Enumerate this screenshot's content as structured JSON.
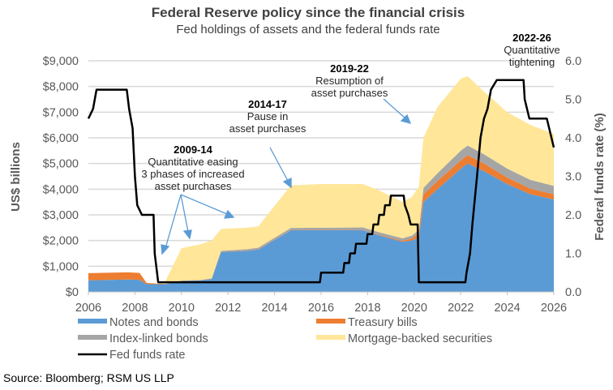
{
  "chart_data": {
    "type": "area",
    "title": "Federal Reserve policy since the financial crisis",
    "subtitle": "Fed holdings of assets and the federal funds rate",
    "ylabel": "US$ billions",
    "y2label": "Federal funds rate (%)",
    "xlim": [
      2006,
      2026
    ],
    "ylim": [
      0,
      9000
    ],
    "y2lim": [
      0,
      6
    ],
    "grid": true,
    "legend_position": "bottom",
    "x_ticks": [
      "2006",
      "2008",
      "2010",
      "2012",
      "2014",
      "2016",
      "2018",
      "2020",
      "2022",
      "2024",
      "2026"
    ],
    "y_ticks": [
      "$0",
      "$1,000",
      "$2,000",
      "$3,000",
      "$4,000",
      "$5,000",
      "$6,000",
      "$7,000",
      "$8,000",
      "$9,000"
    ],
    "y2_ticks": [
      "0.0",
      "1.0",
      "2.0",
      "3.0",
      "4.0",
      "5.0",
      "6.0"
    ],
    "x": [
      2006,
      2007.7,
      2008.2,
      2008.5,
      2009,
      2009.3,
      2010,
      2010.8,
      2011.3,
      2011.7,
      2012.8,
      2013.3,
      2014.7,
      2016,
      2017.8,
      2018.5,
      2019.5,
      2019.9,
      2020.2,
      2020.4,
      2021,
      2022,
      2022.3,
      2023,
      2024,
      2025,
      2026
    ],
    "series": [
      {
        "name": "Notes and bonds",
        "color": "#5B9BD5",
        "values": [
          450,
          480,
          470,
          300,
          300,
          300,
          430,
          450,
          500,
          1550,
          1600,
          1650,
          2400,
          2400,
          2400,
          2200,
          1950,
          2000,
          2100,
          3500,
          4000,
          4800,
          5000,
          4700,
          4200,
          3800,
          3600
        ]
      },
      {
        "name": "Treasury bills",
        "color": "#ED7D31",
        "values": [
          280,
          280,
          270,
          50,
          20,
          10,
          10,
          10,
          10,
          10,
          10,
          10,
          10,
          10,
          10,
          20,
          40,
          80,
          200,
          300,
          320,
          320,
          320,
          300,
          250,
          220,
          200
        ]
      },
      {
        "name": "Index-linked bonds",
        "color": "#A5A5A5",
        "values": [
          0,
          0,
          0,
          0,
          0,
          0,
          0,
          0,
          20,
          40,
          50,
          60,
          80,
          90,
          100,
          100,
          100,
          110,
          120,
          250,
          300,
          380,
          380,
          360,
          350,
          340,
          330
        ]
      },
      {
        "name": "Mortgage-backed securities",
        "color": "#FFE699",
        "values": [
          0,
          0,
          0,
          0,
          10,
          90,
          1260,
          1390,
          1470,
          850,
          840,
          830,
          1660,
          1700,
          1690,
          1630,
          1410,
          1510,
          1680,
          1950,
          2580,
          2800,
          2700,
          2440,
          2200,
          2140,
          2020
        ]
      }
    ],
    "line": {
      "name": "Fed funds rate",
      "color": "#000000",
      "axis": "right",
      "points": [
        [
          2006,
          4.5
        ],
        [
          2006.2,
          4.75
        ],
        [
          2006.35,
          5.25
        ],
        [
          2007.65,
          5.25
        ],
        [
          2007.75,
          4.75
        ],
        [
          2007.9,
          4.25
        ],
        [
          2008.0,
          3.0
        ],
        [
          2008.1,
          2.25
        ],
        [
          2008.3,
          2.0
        ],
        [
          2008.8,
          2.0
        ],
        [
          2008.85,
          1.0
        ],
        [
          2009.0,
          0.25
        ],
        [
          2015.95,
          0.25
        ],
        [
          2016.0,
          0.5
        ],
        [
          2016.95,
          0.5
        ],
        [
          2017.0,
          0.75
        ],
        [
          2017.2,
          0.75
        ],
        [
          2017.25,
          1.0
        ],
        [
          2017.45,
          1.0
        ],
        [
          2017.5,
          1.25
        ],
        [
          2017.95,
          1.25
        ],
        [
          2018.0,
          1.5
        ],
        [
          2018.2,
          1.5
        ],
        [
          2018.25,
          1.75
        ],
        [
          2018.45,
          1.75
        ],
        [
          2018.5,
          2.0
        ],
        [
          2018.7,
          2.0
        ],
        [
          2018.75,
          2.25
        ],
        [
          2018.95,
          2.25
        ],
        [
          2019.0,
          2.5
        ],
        [
          2019.55,
          2.5
        ],
        [
          2019.6,
          2.25
        ],
        [
          2019.75,
          2.0
        ],
        [
          2019.85,
          1.75
        ],
        [
          2020.15,
          1.75
        ],
        [
          2020.2,
          0.25
        ],
        [
          2022.2,
          0.25
        ],
        [
          2022.25,
          0.5
        ],
        [
          2022.4,
          1.0
        ],
        [
          2022.5,
          1.75
        ],
        [
          2022.7,
          3.0
        ],
        [
          2022.85,
          4.0
        ],
        [
          2023.0,
          4.5
        ],
        [
          2023.15,
          4.75
        ],
        [
          2023.3,
          5.25
        ],
        [
          2023.55,
          5.5
        ],
        [
          2024.7,
          5.5
        ],
        [
          2024.75,
          5.0
        ],
        [
          2024.85,
          4.75
        ],
        [
          2024.95,
          4.5
        ],
        [
          2025.7,
          4.5
        ],
        [
          2025.8,
          4.25
        ],
        [
          2026.0,
          3.75
        ]
      ]
    },
    "annotations": [
      {
        "year_label": "2009-14",
        "lines": [
          "Quantitative easing",
          "3 phases of increased",
          "asset purchases"
        ]
      },
      {
        "year_label": "2014-17",
        "lines": [
          "Pause in",
          "asset purchases"
        ]
      },
      {
        "year_label": "2019-22",
        "lines": [
          "Resumption of",
          "asset purchases"
        ]
      },
      {
        "year_label": "2022-26",
        "lines": [
          "Quantitative",
          "tightening"
        ]
      }
    ]
  },
  "source": "Source: Bloomberg; RSM US LLP"
}
